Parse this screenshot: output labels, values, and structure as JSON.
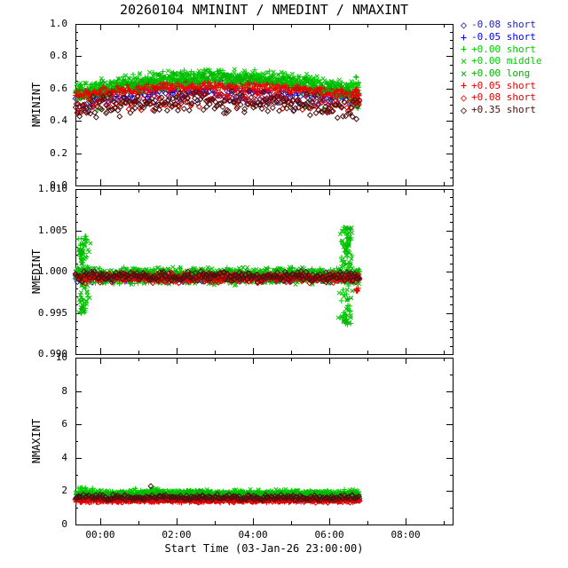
{
  "title": "20260104 NMININT / NMEDINT / NMAXINT",
  "x_axis": {
    "label": "Start Time (03-Jan-26 23:00:00)",
    "start_time": "03-Jan-26 23:00:00",
    "tick_labels": [
      "00:00",
      "02:00",
      "04:00",
      "06:00",
      "08:00"
    ],
    "tick_hours": [
      1,
      3,
      5,
      7,
      9
    ],
    "minor_hours": [
      2,
      4,
      6,
      8,
      10
    ],
    "range_hours": [
      0.35,
      10.23
    ],
    "data_range_hours": [
      0.36,
      7.78
    ]
  },
  "legend": {
    "items": [
      {
        "symbol": "diamond",
        "label": "-0.08 short",
        "color": "#2323b4"
      },
      {
        "symbol": "plus",
        "label": "-0.05 short",
        "color": "#0000ee"
      },
      {
        "symbol": "plus",
        "label": "+0.00 short",
        "color": "#00cc00"
      },
      {
        "symbol": "x",
        "label": "+0.00 middle",
        "color": "#00cc00"
      },
      {
        "symbol": "x",
        "label": "+0.00 long",
        "color": "#00b400"
      },
      {
        "symbol": "plus",
        "label": "+0.05 short",
        "color": "#ee0000"
      },
      {
        "symbol": "diamond",
        "label": "+0.08 short",
        "color": "#dd0000"
      },
      {
        "symbol": "diamond",
        "label": "+0.35 short",
        "color": "#4d0f0f"
      }
    ]
  },
  "chart_data": [
    {
      "type": "scatter",
      "ylabel": "NMININT",
      "ylim": [
        0.0,
        1.0
      ],
      "minor_step": 0.05,
      "yticks": [
        {
          "v": 0.0,
          "label": "0.0"
        },
        {
          "v": 0.2,
          "label": "0.2"
        },
        {
          "v": 0.4,
          "label": "0.4"
        },
        {
          "v": 0.6,
          "label": "0.6"
        },
        {
          "v": 0.8,
          "label": "0.8"
        },
        {
          "v": 1.0,
          "label": "1.0"
        }
      ],
      "series": [
        {
          "name": "-0.08 short",
          "color": "#2323b4",
          "symbol": "diamond",
          "n": 150,
          "base": 0.52,
          "arch": 0.05,
          "noise": 0.06,
          "seed": 101,
          "out_p": 0.03,
          "out_amp": -0.08
        },
        {
          "name": "-0.05 short",
          "color": "#0000ee",
          "symbol": "plus",
          "n": 150,
          "base": 0.56,
          "arch": 0.05,
          "noise": 0.05,
          "seed": 102,
          "out_p": 0.02,
          "out_amp": -0.07
        },
        {
          "name": "+0.00 short",
          "color": "#00cc00",
          "symbol": "plus",
          "n": 380,
          "base": 0.575,
          "arch": 0.09,
          "noise": 0.06,
          "seed": 103,
          "out_p": 0.015,
          "out_amp": -0.17,
          "spikes": [
            {
              "t": 7.7,
              "sd": 0.06,
              "n": 16,
              "amp": 0.1,
              "up": 0.35
            }
          ]
        },
        {
          "name": "+0.00 middle",
          "color": "#00cc00",
          "symbol": "x",
          "n": 380,
          "base": 0.585,
          "arch": 0.09,
          "noise": 0.06,
          "seed": 104,
          "out_p": 0.01,
          "out_amp": -0.12
        },
        {
          "name": "+0.00 long",
          "color": "#00b400",
          "symbol": "x",
          "n": 380,
          "base": 0.565,
          "arch": 0.09,
          "noise": 0.06,
          "seed": 105,
          "out_p": 0.01,
          "out_amp": -0.12
        },
        {
          "name": "+0.05 short",
          "color": "#ee0000",
          "symbol": "plus",
          "n": 300,
          "base": 0.565,
          "arch": 0.045,
          "noise": 0.035,
          "seed": 106,
          "out_p": 0.01,
          "out_amp": -0.07,
          "spikes": [
            {
              "t": 7.72,
              "sd": 0.05,
              "n": 10,
              "amp": 0.08,
              "up": 0.3
            }
          ]
        },
        {
          "name": "+0.08 short",
          "color": "#dd0000",
          "symbol": "diamond",
          "n": 160,
          "base": 0.5,
          "arch": 0.04,
          "noise": 0.08,
          "seed": 107,
          "out_p": 0.03,
          "out_amp": -0.08
        },
        {
          "name": "+0.35 short",
          "color": "#4d0f0f",
          "symbol": "diamond",
          "n": 210,
          "base": 0.475,
          "arch": 0.04,
          "noise": 0.08,
          "seed": 108,
          "out_p": 0.03,
          "out_amp": 0.12
        }
      ]
    },
    {
      "type": "scatter",
      "ylabel": "NMEDINT",
      "ylim": [
        0.99,
        1.01
      ],
      "minor_step": 0.001,
      "yticks": [
        {
          "v": 0.99,
          "label": "0.990"
        },
        {
          "v": 0.995,
          "label": "0.995"
        },
        {
          "v": 1.0,
          "label": "1.000"
        },
        {
          "v": 1.005,
          "label": "1.005"
        },
        {
          "v": 1.01,
          "label": "1.010"
        }
      ],
      "series": [
        {
          "name": "-0.08 short",
          "color": "#2323b4",
          "symbol": "diamond",
          "n": 220,
          "base": 0.9993,
          "arch": 0,
          "noise": 0.0007,
          "seed": 201
        },
        {
          "name": "-0.05 short",
          "color": "#0000ee",
          "symbol": "plus",
          "n": 220,
          "base": 0.99935,
          "arch": 0,
          "noise": 0.0007,
          "seed": 202
        },
        {
          "name": "+0.00 short",
          "color": "#00cc00",
          "symbol": "plus",
          "n": 380,
          "base": 0.9995,
          "arch": 0,
          "noise": 0.0011,
          "seed": 203,
          "spikes": [
            {
              "t": 0.55,
              "sd": 0.1,
              "n": 40,
              "amp": 0.0048,
              "up": 0.55
            },
            {
              "t": 7.45,
              "sd": 0.12,
              "n": 50,
              "amp": 0.006,
              "up": 0.55
            }
          ]
        },
        {
          "name": "+0.00 middle",
          "color": "#00cc00",
          "symbol": "x",
          "n": 380,
          "base": 0.99945,
          "arch": 0,
          "noise": 0.0012,
          "seed": 204,
          "spikes": [
            {
              "t": 0.6,
              "sd": 0.12,
              "n": 30,
              "amp": 0.004,
              "up": 0.5
            },
            {
              "t": 7.4,
              "sd": 0.12,
              "n": 38,
              "amp": 0.0055,
              "up": 0.55
            }
          ]
        },
        {
          "name": "+0.00 long",
          "color": "#00b400",
          "symbol": "x",
          "n": 380,
          "base": 0.99955,
          "arch": 0,
          "noise": 0.001,
          "seed": 205,
          "spikes": [
            {
              "t": 0.5,
              "sd": 0.08,
              "n": 24,
              "amp": 0.0045,
              "up": 0.6
            },
            {
              "t": 7.5,
              "sd": 0.1,
              "n": 34,
              "amp": 0.0058,
              "up": 0.6
            }
          ]
        },
        {
          "name": "+0.05 short",
          "color": "#ee0000",
          "symbol": "plus",
          "n": 300,
          "base": 0.99925,
          "arch": 0,
          "noise": 0.0006,
          "seed": 206,
          "spikes": [
            {
              "t": 7.72,
              "sd": 0.04,
              "n": 8,
              "amp": 0.0018,
              "up": 0.4
            }
          ]
        },
        {
          "name": "+0.08 short",
          "color": "#dd0000",
          "symbol": "diamond",
          "n": 180,
          "base": 0.9992,
          "arch": 0,
          "noise": 0.0007,
          "seed": 207
        },
        {
          "name": "+0.35 short",
          "color": "#4d0f0f",
          "symbol": "diamond",
          "n": 220,
          "base": 0.9994,
          "arch": 0,
          "noise": 0.0007,
          "seed": 208
        }
      ]
    },
    {
      "type": "scatter",
      "ylabel": "NMAXINT",
      "ylim": [
        0,
        10
      ],
      "minor_step": 1,
      "yticks": [
        {
          "v": 0,
          "label": "0"
        },
        {
          "v": 2,
          "label": "2"
        },
        {
          "v": 4,
          "label": "4"
        },
        {
          "v": 6,
          "label": "6"
        },
        {
          "v": 8,
          "label": "8"
        },
        {
          "v": 10,
          "label": "10"
        }
      ],
      "series": [
        {
          "name": "-0.08 short",
          "color": "#2323b4",
          "symbol": "diamond",
          "n": 190,
          "base": 1.55,
          "arch": 0,
          "noise": 0.16,
          "seed": 301
        },
        {
          "name": "-0.05 short",
          "color": "#0000ee",
          "symbol": "plus",
          "n": 190,
          "base": 1.58,
          "arch": 0,
          "noise": 0.16,
          "seed": 302
        },
        {
          "name": "+0.00 short",
          "color": "#00cc00",
          "symbol": "plus",
          "n": 380,
          "base": 1.82,
          "arch": 0,
          "noise": 0.24,
          "seed": 303,
          "out_p": 0.02,
          "out_amp": 0.35,
          "spikes": [
            {
              "t": 0.6,
              "sd": 0.15,
              "n": 18,
              "amp": 0.4,
              "up": 0.95
            }
          ]
        },
        {
          "name": "+0.00 middle",
          "color": "#00cc00",
          "symbol": "x",
          "n": 380,
          "base": 1.88,
          "arch": 0,
          "noise": 0.25,
          "seed": 304,
          "spikes": [
            {
              "t": 2.5,
              "sd": 0.25,
              "n": 16,
              "amp": 0.3,
              "up": 0.95
            }
          ]
        },
        {
          "name": "+0.00 long",
          "color": "#00b400",
          "symbol": "x",
          "n": 380,
          "base": 1.78,
          "arch": 0,
          "noise": 0.24,
          "seed": 305,
          "spikes": [
            {
              "t": 3.5,
              "sd": 0.25,
              "n": 14,
              "amp": 0.3,
              "up": 0.95
            }
          ]
        },
        {
          "name": "+0.05 short",
          "color": "#ee0000",
          "symbol": "plus",
          "n": 300,
          "base": 1.42,
          "arch": 0,
          "noise": 0.12,
          "seed": 306
        },
        {
          "name": "+0.08 short",
          "color": "#dd0000",
          "symbol": "diamond",
          "n": 190,
          "base": 1.45,
          "arch": 0,
          "noise": 0.15,
          "seed": 307
        },
        {
          "name": "+0.35 short",
          "color": "#4d0f0f",
          "symbol": "diamond",
          "n": 230,
          "base": 1.62,
          "arch": 0,
          "noise": 0.2,
          "seed": 308,
          "out_p": 0.012,
          "out_amp": 0.8
        }
      ]
    }
  ]
}
